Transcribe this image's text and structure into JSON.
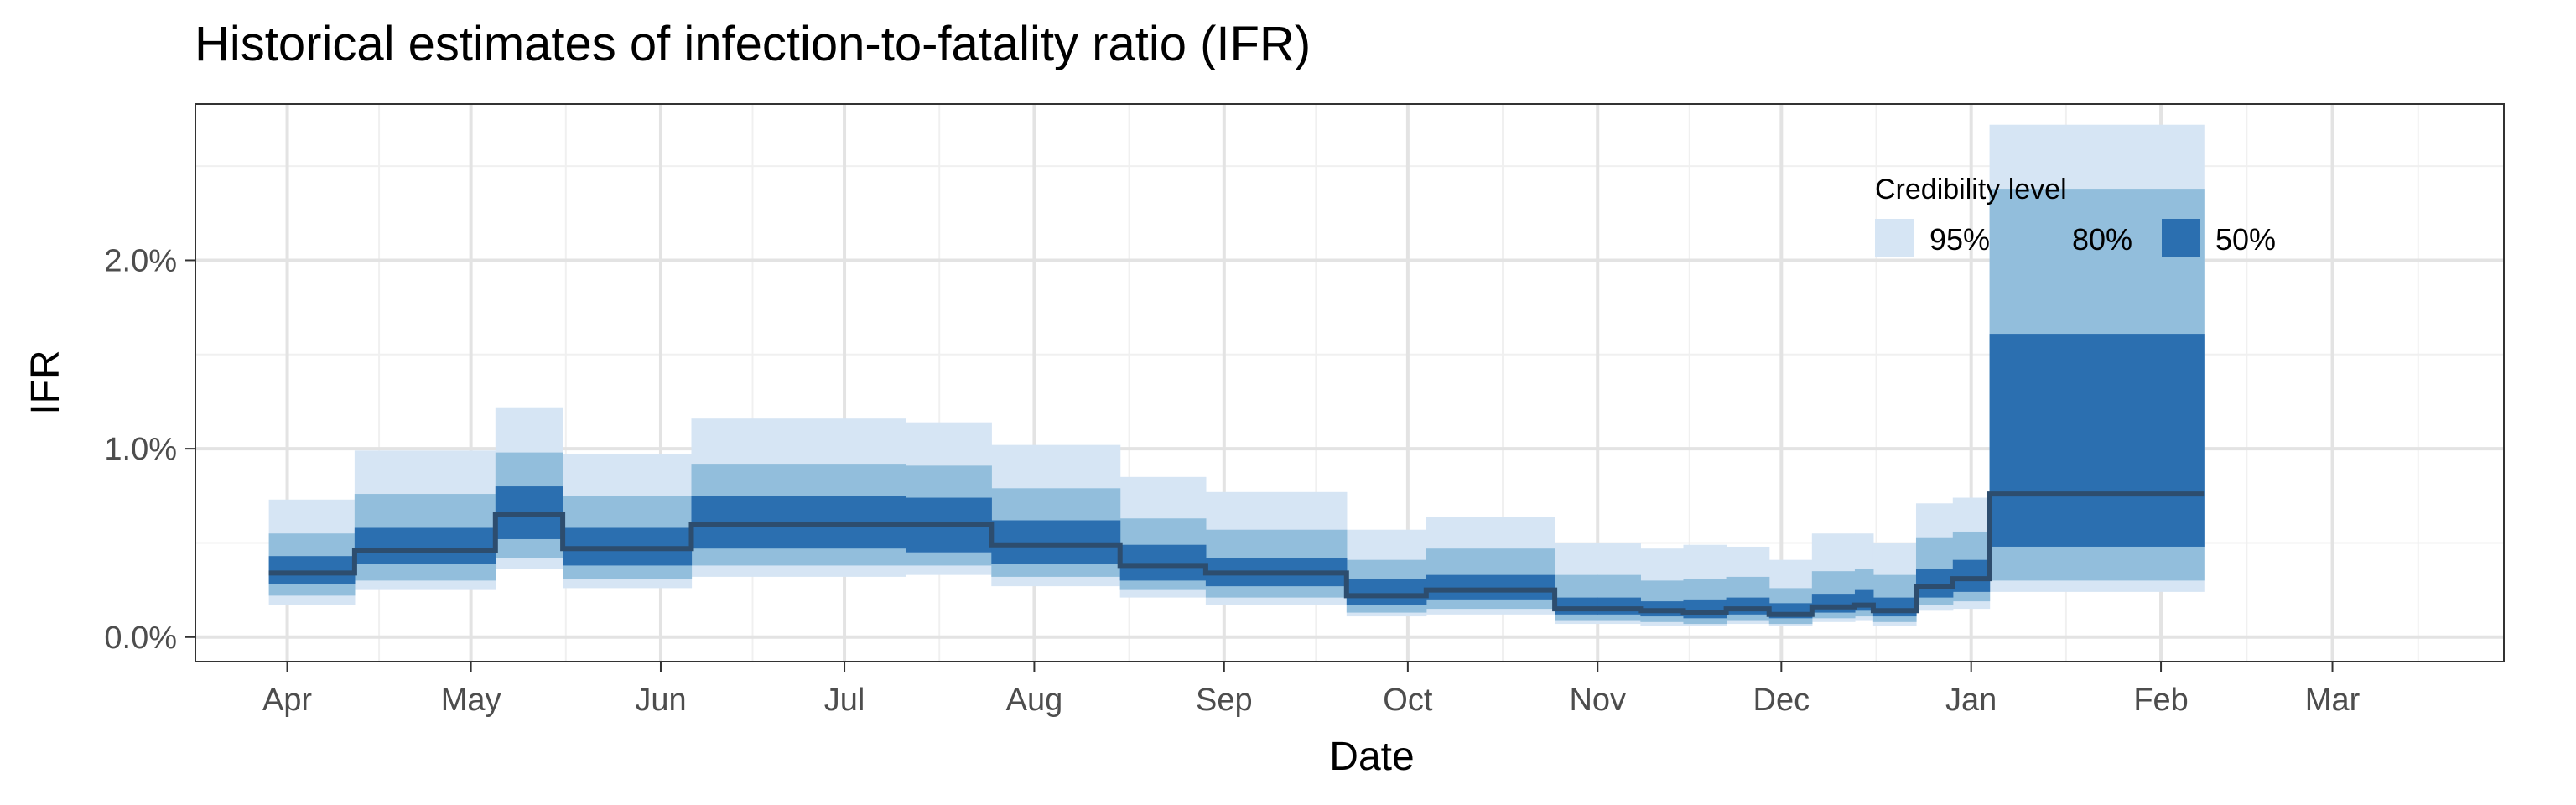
{
  "chart_data": {
    "type": "area",
    "title": "Historical estimates of infection-to-fatality ratio (IFR)",
    "xlabel": "Date",
    "ylabel": "IFR",
    "x_ticks": [
      "Apr",
      "May",
      "Jun",
      "Jul",
      "Aug",
      "Sep",
      "Oct",
      "Nov",
      "Dec",
      "Jan",
      "Feb",
      "Mar"
    ],
    "x_tick_dates": [
      "2020-04-01",
      "2020-05-01",
      "2020-06-01",
      "2020-07-01",
      "2020-08-01",
      "2020-09-01",
      "2020-10-01",
      "2020-11-01",
      "2020-12-01",
      "2021-01-01",
      "2021-02-01",
      "2021-03-01"
    ],
    "x_range": [
      "2020-03-17",
      "2021-03-29"
    ],
    "y_ticks": [
      {
        "value": 0.0,
        "label": "0.0%"
      },
      {
        "value": 1.0,
        "label": "1.0%"
      },
      {
        "value": 2.0,
        "label": "2.0%"
      }
    ],
    "ylim": [
      -0.13,
      2.83
    ],
    "grid": true,
    "legend": {
      "title": "Credibility level",
      "position": "top-right inside",
      "items": [
        {
          "label": "95%",
          "color": "#d6e5f4"
        },
        {
          "label": "80%",
          "color": "#92bedc"
        },
        {
          "label": "50%",
          "color": "#2b6fb0"
        }
      ]
    },
    "median_color": "#2d4d6e",
    "series": {
      "x_start": [
        "2020-03-29",
        "2020-04-12",
        "2020-05-05",
        "2020-05-16",
        "2020-06-06",
        "2020-07-11",
        "2020-07-25",
        "2020-08-15",
        "2020-08-29",
        "2020-09-21",
        "2020-10-04",
        "2020-10-25",
        "2020-11-01",
        "2020-11-08",
        "2020-11-15",
        "2020-11-22",
        "2020-11-29",
        "2020-12-06",
        "2020-12-13",
        "2020-12-16",
        "2020-12-23",
        "2020-12-29",
        "2021-01-04"
      ],
      "x_end": [
        "2020-04-12",
        "2020-05-05",
        "2020-05-16",
        "2020-06-06",
        "2020-07-11",
        "2020-07-25",
        "2020-08-15",
        "2020-08-29",
        "2020-09-21",
        "2020-10-04",
        "2020-10-25",
        "2020-11-01",
        "2020-11-08",
        "2020-11-15",
        "2020-11-22",
        "2020-11-29",
        "2020-12-06",
        "2020-12-13",
        "2020-12-16",
        "2020-12-23",
        "2020-12-29",
        "2021-01-04",
        "2021-02-08"
      ],
      "median": [
        0.34,
        0.46,
        0.65,
        0.47,
        0.6,
        0.6,
        0.49,
        0.38,
        0.34,
        0.22,
        0.25,
        0.15,
        0.15,
        0.14,
        0.13,
        0.15,
        0.12,
        0.16,
        0.17,
        0.14,
        0.27,
        0.31,
        0.76
      ],
      "lo50": [
        0.28,
        0.39,
        0.52,
        0.38,
        0.47,
        0.45,
        0.39,
        0.3,
        0.27,
        0.17,
        0.2,
        0.12,
        0.12,
        0.11,
        0.1,
        0.12,
        0.1,
        0.13,
        0.14,
        0.11,
        0.21,
        0.24,
        0.48
      ],
      "hi50": [
        0.43,
        0.58,
        0.8,
        0.58,
        0.75,
        0.74,
        0.62,
        0.49,
        0.42,
        0.31,
        0.33,
        0.21,
        0.21,
        0.19,
        0.2,
        0.21,
        0.18,
        0.23,
        0.25,
        0.21,
        0.36,
        0.41,
        1.61
      ],
      "lo80": [
        0.22,
        0.3,
        0.42,
        0.31,
        0.38,
        0.38,
        0.32,
        0.25,
        0.21,
        0.13,
        0.15,
        0.09,
        0.09,
        0.08,
        0.07,
        0.09,
        0.07,
        0.1,
        0.11,
        0.08,
        0.17,
        0.19,
        0.3
      ],
      "hi80": [
        0.55,
        0.76,
        0.98,
        0.75,
        0.92,
        0.91,
        0.79,
        0.63,
        0.57,
        0.41,
        0.47,
        0.33,
        0.33,
        0.3,
        0.31,
        0.32,
        0.26,
        0.35,
        0.36,
        0.33,
        0.53,
        0.56,
        2.38
      ],
      "lo95": [
        0.17,
        0.25,
        0.36,
        0.26,
        0.32,
        0.33,
        0.27,
        0.21,
        0.17,
        0.11,
        0.12,
        0.07,
        0.07,
        0.06,
        0.06,
        0.07,
        0.06,
        0.08,
        0.09,
        0.06,
        0.14,
        0.15,
        0.24
      ],
      "hi95": [
        0.73,
        0.99,
        1.22,
        0.97,
        1.16,
        1.14,
        1.02,
        0.85,
        0.77,
        0.57,
        0.64,
        0.5,
        0.5,
        0.47,
        0.49,
        0.48,
        0.41,
        0.55,
        0.55,
        0.5,
        0.71,
        0.74,
        2.72
      ]
    }
  }
}
